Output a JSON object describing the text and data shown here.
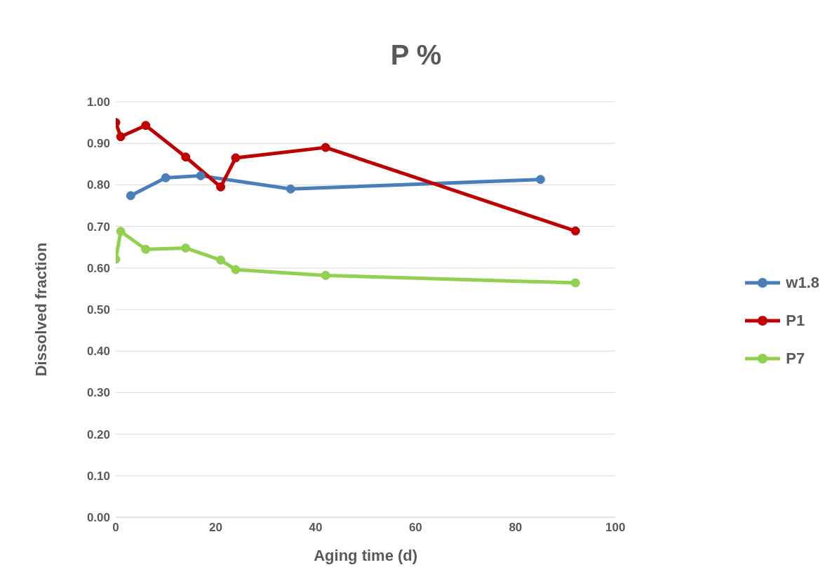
{
  "chart_data": {
    "type": "line",
    "title": "P %",
    "xlabel": "Aging time (d)",
    "ylabel": "Dissolved fraction",
    "xlim": [
      0,
      100
    ],
    "xticks": [
      0,
      20,
      40,
      60,
      80,
      100
    ],
    "ylim": [
      0,
      1
    ],
    "yticks": [
      {
        "value": 0,
        "label": "0.00"
      },
      {
        "value": 0.1,
        "label": "0.10"
      },
      {
        "value": 0.2,
        "label": "0.20"
      },
      {
        "value": 0.3,
        "label": "0.30"
      },
      {
        "value": 0.4,
        "label": "0.40"
      },
      {
        "value": 0.5,
        "label": "0.50"
      },
      {
        "value": 0.6,
        "label": "0.60"
      },
      {
        "value": 0.7,
        "label": "0.70"
      },
      {
        "value": 0.8,
        "label": "0.80"
      },
      {
        "value": 0.9,
        "label": "0.90"
      },
      {
        "value": 1,
        "label": "1.00"
      }
    ],
    "grid": "y",
    "legend": "right",
    "marker": "circle",
    "line_style": "solid",
    "series": [
      {
        "name": "w1.8",
        "color": "#4a7ebb",
        "x": [
          3,
          10,
          17,
          35,
          85
        ],
        "values": [
          0.774,
          0.817,
          0.822,
          0.79,
          0.813
        ]
      },
      {
        "name": "P1",
        "color": "#c00000",
        "x": [
          0,
          1,
          6,
          14,
          21,
          24,
          42,
          92
        ],
        "values": [
          0.95,
          0.916,
          0.943,
          0.867,
          0.795,
          0.865,
          0.89,
          0.689
        ]
      },
      {
        "name": "P7",
        "color": "#92d050",
        "x": [
          0,
          1,
          6,
          14,
          21,
          24,
          42,
          92
        ],
        "values": [
          0.621,
          0.688,
          0.645,
          0.648,
          0.619,
          0.596,
          0.582,
          0.564
        ]
      }
    ]
  }
}
